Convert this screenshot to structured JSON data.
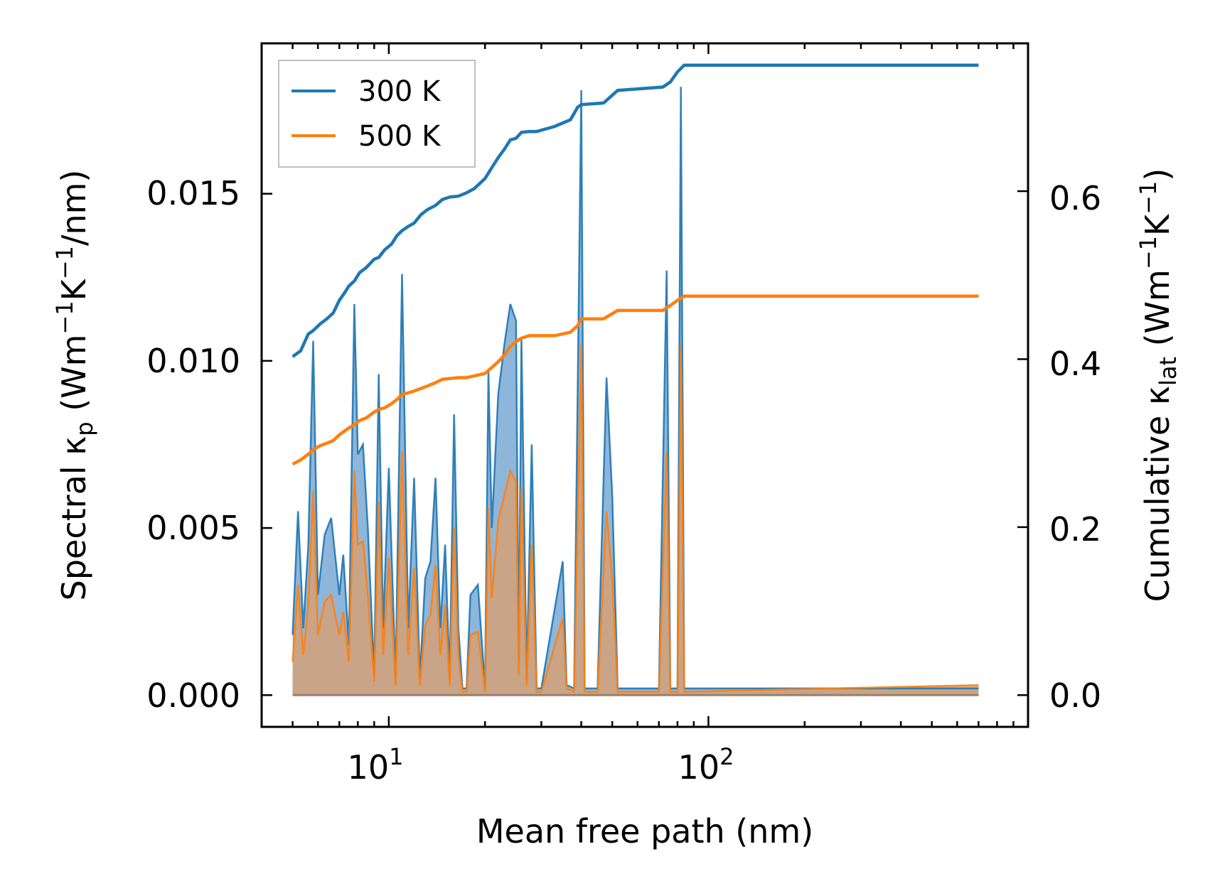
{
  "chart_data": {
    "type": "line",
    "xscale": "log",
    "xlim": [
      4.0,
      1000
    ],
    "xlabel": "Mean free path (nm)",
    "x_ticks": [
      {
        "value": 10,
        "base": "10",
        "exp": "1"
      },
      {
        "value": 100,
        "base": "10",
        "exp": "2"
      }
    ],
    "left_axis": {
      "label": {
        "pre": "Spectral κ",
        "sub": "p",
        "mid": " (Wm",
        "sup1": "−1",
        "mid2": "K",
        "sup2": "−1",
        "post": "/nm)"
      },
      "ylim": [
        -0.00095,
        0.0195
      ],
      "ticks": [
        0.0,
        0.005,
        0.01,
        0.015
      ],
      "tick_labels": [
        "0.000",
        "0.005",
        "0.010",
        "0.015"
      ]
    },
    "right_axis": {
      "label": {
        "pre": "Cumulative κ",
        "sub": "lat",
        "mid": " (Wm",
        "sup1": "−1",
        "mid2": "K",
        "sup2": "−1",
        "post": ")"
      },
      "ylim": [
        -0.0378,
        0.776
      ],
      "ticks": [
        0.0,
        0.2,
        0.4,
        0.6
      ],
      "tick_labels": [
        "0.0",
        "0.2",
        "0.4",
        "0.6"
      ]
    },
    "legend": {
      "position": "top-left",
      "entries": [
        "300 K",
        "500 K"
      ]
    },
    "series": [
      {
        "name": "300 K",
        "color": "#1f77b4",
        "spectral": {
          "x": [
            5.0,
            5.2,
            5.4,
            5.6,
            5.8,
            6.0,
            6.3,
            6.6,
            7.0,
            7.2,
            7.5,
            7.8,
            8.0,
            8.3,
            8.6,
            9.0,
            9.3,
            9.6,
            10.0,
            10.5,
            11.0,
            11.5,
            12.0,
            12.5,
            13.0,
            13.5,
            14.0,
            14.5,
            15.0,
            15.5,
            16.0,
            16.5,
            17.0,
            17.5,
            18.0,
            19.0,
            20.0,
            20.5,
            21.0,
            22.0,
            23.0,
            24.0,
            25.0,
            25.5,
            26.0,
            27.0,
            28.0,
            29.0,
            30.0,
            35.0,
            36.0,
            38.0,
            40.0,
            41.0,
            42.0,
            45.0,
            48.0,
            50.0,
            52.0,
            55.0,
            70.0,
            74.0,
            76.0,
            78.0,
            80.0,
            82.0,
            84.0,
            700.0
          ],
          "y": [
            0.0018,
            0.0055,
            0.002,
            0.0045,
            0.0106,
            0.003,
            0.0048,
            0.0053,
            0.003,
            0.0042,
            0.0015,
            0.0117,
            0.0072,
            0.0075,
            0.005,
            0.0006,
            0.0096,
            0.002,
            0.0068,
            0.0005,
            0.0126,
            0.002,
            0.0065,
            0.0005,
            0.0035,
            0.004,
            0.0065,
            0.002,
            0.0045,
            0.0005,
            0.0084,
            0.002,
            0.0002,
            0.0002,
            0.003,
            0.0033,
            0.0002,
            0.0097,
            0.005,
            0.009,
            0.0105,
            0.0117,
            0.0112,
            0.001,
            0.0107,
            0.0005,
            0.0075,
            0.0002,
            0.0002,
            0.004,
            0.0003,
            0.0002,
            0.0181,
            0.0002,
            0.0002,
            0.0002,
            0.0095,
            0.006,
            0.0002,
            0.0002,
            0.0002,
            0.0127,
            0.0002,
            0.0002,
            0.0002,
            0.0182,
            0.0002,
            0.0002
          ]
        },
        "cumulative": {
          "x": [
            5.0,
            5.3,
            5.6,
            5.8,
            6.1,
            6.4,
            6.7,
            7.0,
            7.3,
            7.5,
            7.8,
            8.1,
            8.5,
            9.0,
            9.3,
            9.7,
            10.2,
            10.6,
            11.0,
            11.5,
            12.0,
            12.6,
            13.2,
            14.0,
            14.7,
            15.5,
            16.5,
            17.5,
            18.5,
            20.0,
            21.0,
            22.0,
            23.0,
            24.0,
            25.0,
            26.0,
            27.5,
            29.0,
            33.0,
            37.0,
            39.0,
            40.0,
            47.0,
            52.0,
            72.0,
            76.0,
            80.0,
            84.0,
            700.0
          ],
          "y": [
            0.403,
            0.41,
            0.43,
            0.434,
            0.442,
            0.448,
            0.455,
            0.47,
            0.48,
            0.487,
            0.493,
            0.503,
            0.509,
            0.519,
            0.521,
            0.53,
            0.537,
            0.547,
            0.553,
            0.558,
            0.562,
            0.572,
            0.578,
            0.583,
            0.59,
            0.593,
            0.594,
            0.598,
            0.603,
            0.615,
            0.628,
            0.64,
            0.65,
            0.661,
            0.663,
            0.67,
            0.671,
            0.671,
            0.677,
            0.685,
            0.7,
            0.703,
            0.705,
            0.72,
            0.724,
            0.73,
            0.742,
            0.75,
            0.75
          ]
        }
      },
      {
        "name": "500 K",
        "color": "#ff7f0e",
        "spectral": {
          "x": [
            5.0,
            5.2,
            5.4,
            5.6,
            5.8,
            6.0,
            6.3,
            6.6,
            7.0,
            7.2,
            7.5,
            7.8,
            8.0,
            8.3,
            8.6,
            9.0,
            9.3,
            9.6,
            10.0,
            10.5,
            11.0,
            11.5,
            12.0,
            12.5,
            13.0,
            13.5,
            14.0,
            14.5,
            15.0,
            15.5,
            16.0,
            16.5,
            17.0,
            17.5,
            18.0,
            19.0,
            20.0,
            20.5,
            21.0,
            22.0,
            23.0,
            24.0,
            25.0,
            25.5,
            26.0,
            27.0,
            28.0,
            29.0,
            30.0,
            35.0,
            36.0,
            38.0,
            40.0,
            41.0,
            42.0,
            45.0,
            48.0,
            50.0,
            52.0,
            55.0,
            70.0,
            74.0,
            76.0,
            78.0,
            80.0,
            82.0,
            84.0,
            700.0
          ],
          "y": [
            0.001,
            0.0033,
            0.0012,
            0.0027,
            0.0061,
            0.0018,
            0.0028,
            0.003,
            0.0018,
            0.0025,
            0.001,
            0.0067,
            0.0045,
            0.0046,
            0.003,
            0.0004,
            0.0058,
            0.0012,
            0.0041,
            0.0003,
            0.0073,
            0.0012,
            0.0038,
            0.0003,
            0.0021,
            0.0024,
            0.0039,
            0.0012,
            0.0027,
            0.0003,
            0.005,
            0.0012,
            0.0001,
            0.0001,
            0.0018,
            0.0019,
            0.0001,
            0.0056,
            0.0029,
            0.0052,
            0.006,
            0.0067,
            0.0064,
            0.0006,
            0.0062,
            0.0003,
            0.0045,
            0.0001,
            0.0001,
            0.0023,
            0.0002,
            0.0001,
            0.0105,
            0.0001,
            0.0001,
            0.0001,
            0.0055,
            0.0035,
            0.0001,
            0.0001,
            0.0001,
            0.0073,
            0.0001,
            0.0001,
            0.0001,
            0.0105,
            0.0001,
            0.0003
          ]
        },
        "cumulative": {
          "x": [
            5.0,
            5.3,
            5.6,
            5.8,
            6.1,
            6.4,
            6.7,
            7.0,
            7.3,
            7.5,
            7.8,
            8.1,
            8.5,
            9.0,
            9.3,
            9.7,
            10.2,
            10.6,
            11.0,
            11.5,
            12.0,
            12.6,
            13.2,
            14.0,
            14.7,
            15.5,
            16.5,
            17.5,
            18.5,
            20.0,
            21.0,
            22.0,
            23.0,
            24.0,
            25.0,
            26.0,
            27.5,
            29.0,
            33.0,
            37.0,
            39.0,
            40.0,
            47.0,
            52.0,
            72.0,
            76.0,
            80.0,
            84.0,
            700.0
          ],
          "y": [
            0.275,
            0.28,
            0.287,
            0.292,
            0.297,
            0.3,
            0.303,
            0.31,
            0.315,
            0.318,
            0.322,
            0.327,
            0.33,
            0.337,
            0.34,
            0.342,
            0.347,
            0.352,
            0.358,
            0.36,
            0.362,
            0.365,
            0.368,
            0.372,
            0.376,
            0.377,
            0.378,
            0.378,
            0.38,
            0.383,
            0.39,
            0.397,
            0.405,
            0.415,
            0.421,
            0.425,
            0.428,
            0.428,
            0.428,
            0.432,
            0.44,
            0.448,
            0.448,
            0.458,
            0.458,
            0.464,
            0.47,
            0.475,
            0.475
          ]
        }
      }
    ]
  }
}
